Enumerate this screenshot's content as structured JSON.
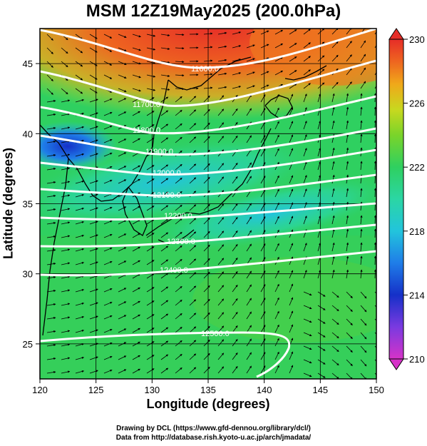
{
  "title": "MSM 12Z19May2025 (200.0hPa)",
  "x_axis": {
    "label": "Longitude (degrees)",
    "range": [
      120,
      150
    ],
    "ticks": [
      "120",
      "125",
      "130",
      "135",
      "140",
      "145",
      "150"
    ]
  },
  "y_axis": {
    "label": "Latitude  (degrees)",
    "range": [
      22.5,
      47.5
    ],
    "ticks": [
      "25",
      "30",
      "35",
      "40",
      "45"
    ]
  },
  "colorbar": {
    "range": [
      210,
      230
    ],
    "ticks": [
      "230",
      "226",
      "222",
      "218",
      "214",
      "210"
    ],
    "colors": [
      "#d633c8",
      "#7a3ae0",
      "#1530c8",
      "#1f7de8",
      "#22c4dc",
      "#2bd6a4",
      "#2fd060",
      "#7ad42a",
      "#c8d81f",
      "#f0a81a",
      "#ee6520",
      "#e62d28"
    ]
  },
  "contours": {
    "field": "geopotential height",
    "labels": [
      "11600.0",
      "11700.0",
      "11800.0",
      "11900.0",
      "12000.0",
      "12100.0",
      "12200.0",
      "12300.0",
      "12400.0",
      "12500.0"
    ],
    "color": "#ffffff"
  },
  "map": {
    "region": "East Asia / Japan",
    "grid": true,
    "wind_vectors": true
  },
  "credits": [
    "Drawing by DCL (https://www.gfd-dennou.org/library/dcl/)",
    "Data from http://database.rish.kyoto-u.ac.jp/arch/jmadata/"
  ]
}
